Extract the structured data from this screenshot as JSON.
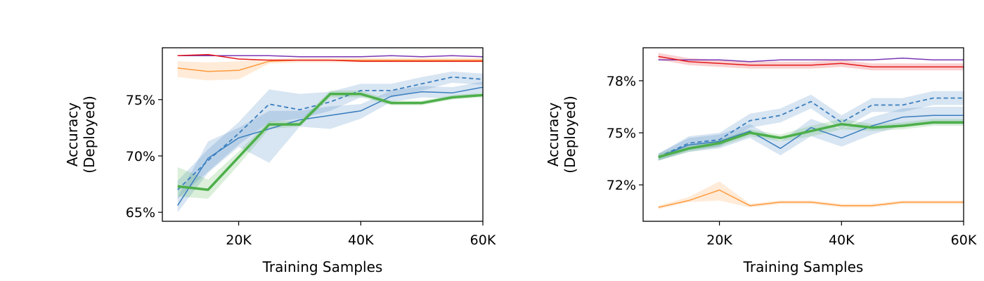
{
  "chart_data": [
    {
      "type": "line",
      "xlabel": "Training Samples",
      "ylabel_lines": [
        "Accuracy",
        "(Deployed)"
      ],
      "xlim": [
        7500,
        60000
      ],
      "ylim": [
        64.2,
        79.6
      ],
      "xticks": [
        20000,
        40000,
        60000
      ],
      "xtick_labels": [
        "20K",
        "40K",
        "60K"
      ],
      "yticks": [
        65,
        70,
        75
      ],
      "ytick_labels": [
        "65%",
        "70%",
        "75%"
      ],
      "grid": false,
      "series": [
        {
          "color": "#ff9a3d",
          "style": "solid",
          "width": 1.5,
          "x": [
            10000,
            15000,
            20000,
            25000,
            30000,
            35000,
            40000,
            45000,
            50000,
            55000,
            60000
          ],
          "y": [
            77.8,
            77.5,
            77.6,
            78.4,
            78.5,
            78.5,
            78.5,
            78.5,
            78.5,
            78.5,
            78.5
          ],
          "band_lo": [
            77.0,
            76.7,
            76.8,
            78.2,
            78.3,
            78.3,
            78.3,
            78.3,
            78.3,
            78.3,
            78.3
          ],
          "band_hi": [
            78.4,
            78.3,
            78.4,
            78.6,
            78.7,
            78.7,
            78.7,
            78.7,
            78.7,
            78.7,
            78.7
          ]
        },
        {
          "color": "#7a35b3",
          "style": "solid",
          "width": 1.5,
          "x": [
            10000,
            15000,
            20000,
            25000,
            30000,
            35000,
            40000,
            45000,
            50000,
            55000,
            60000
          ],
          "y": [
            78.9,
            78.9,
            78.9,
            78.9,
            78.8,
            78.8,
            78.8,
            78.9,
            78.8,
            78.9,
            78.8
          ]
        },
        {
          "color": "#e41a1c",
          "style": "solid",
          "width": 1.5,
          "x": [
            10000,
            15000,
            20000,
            25000,
            30000,
            35000,
            40000,
            45000,
            50000,
            55000,
            60000
          ],
          "y": [
            78.9,
            79.0,
            78.6,
            78.5,
            78.5,
            78.5,
            78.4,
            78.4,
            78.4,
            78.4,
            78.4
          ]
        },
        {
          "color": "#3a7ebf",
          "style": "solid",
          "width": 1.5,
          "x": [
            10000,
            15000,
            20000,
            25000,
            30000,
            35000,
            40000,
            45000,
            50000,
            55000,
            60000
          ],
          "y": [
            65.6,
            69.8,
            71.6,
            72.4,
            73.2,
            73.6,
            74.0,
            75.3,
            75.7,
            75.6,
            76.1
          ],
          "band_lo": [
            65.0,
            68.5,
            70.8,
            69.4,
            72.6,
            72.4,
            73.3,
            74.8,
            75.2,
            75.1,
            75.6
          ],
          "band_hi": [
            66.3,
            71.3,
            72.5,
            74.0,
            74.0,
            74.4,
            74.6,
            75.8,
            76.2,
            76.1,
            76.6
          ]
        },
        {
          "color": "#3a7ebf",
          "style": "dashed",
          "width": 1.8,
          "x": [
            10000,
            15000,
            20000,
            25000,
            30000,
            35000,
            40000,
            45000,
            50000,
            55000,
            60000
          ],
          "y": [
            67.0,
            69.6,
            72.0,
            74.6,
            74.1,
            74.8,
            75.8,
            75.8,
            76.4,
            77.0,
            76.8
          ],
          "band_lo": [
            66.2,
            68.6,
            71.0,
            73.0,
            73.3,
            74.0,
            75.2,
            75.2,
            75.8,
            76.5,
            76.3
          ],
          "band_hi": [
            67.8,
            70.6,
            73.0,
            75.9,
            75.5,
            75.7,
            76.4,
            76.4,
            77.0,
            77.5,
            77.3
          ]
        },
        {
          "color": "#4daf4a",
          "style": "solid",
          "width": 3.5,
          "x": [
            10000,
            15000,
            20000,
            25000,
            30000,
            35000,
            40000,
            45000,
            50000,
            55000,
            60000
          ],
          "y": [
            67.3,
            67.0,
            69.9,
            72.8,
            72.8,
            75.5,
            75.5,
            74.7,
            74.7,
            75.2,
            75.4
          ],
          "band_lo": [
            66.4,
            66.2,
            69.2,
            72.4,
            72.6,
            75.2,
            75.2,
            74.5,
            74.5,
            75.0,
            75.2
          ],
          "band_hi": [
            69.0,
            67.9,
            70.4,
            73.1,
            73.1,
            75.8,
            75.8,
            74.9,
            74.9,
            75.4,
            75.6
          ]
        }
      ]
    },
    {
      "type": "line",
      "xlabel": "Training Samples",
      "ylabel_lines": [
        "Accuracy",
        "(Deployed)"
      ],
      "xlim": [
        7500,
        60000
      ],
      "ylim": [
        69.9,
        79.9
      ],
      "xticks": [
        20000,
        40000,
        60000
      ],
      "xtick_labels": [
        "20K",
        "40K",
        "60K"
      ],
      "yticks": [
        72,
        75,
        78
      ],
      "ytick_labels": [
        "72%",
        "75%",
        "78%"
      ],
      "grid": false,
      "series": [
        {
          "color": "#ff9a3d",
          "style": "solid",
          "width": 1.5,
          "x": [
            10000,
            15000,
            20000,
            25000,
            30000,
            35000,
            40000,
            45000,
            50000,
            55000,
            60000
          ],
          "y": [
            70.7,
            71.1,
            71.7,
            70.8,
            71.0,
            71.0,
            70.8,
            70.8,
            71.0,
            71.0,
            71.0
          ],
          "band_lo": [
            70.6,
            71.0,
            71.1,
            70.7,
            70.9,
            70.9,
            70.7,
            70.7,
            70.9,
            70.9,
            70.9
          ],
          "band_hi": [
            70.8,
            71.3,
            72.2,
            70.9,
            71.1,
            71.1,
            70.9,
            70.9,
            71.1,
            71.1,
            71.1
          ]
        },
        {
          "color": "#7a35b3",
          "style": "solid",
          "width": 1.5,
          "x": [
            10000,
            15000,
            20000,
            25000,
            30000,
            35000,
            40000,
            45000,
            50000,
            55000,
            60000
          ],
          "y": [
            79.2,
            79.2,
            79.2,
            79.1,
            79.2,
            79.2,
            79.2,
            79.2,
            79.3,
            79.2,
            79.2
          ]
        },
        {
          "color": "#e41a1c",
          "style": "solid",
          "width": 1.5,
          "x": [
            10000,
            15000,
            20000,
            25000,
            30000,
            35000,
            40000,
            45000,
            50000,
            55000,
            60000
          ],
          "y": [
            79.4,
            79.1,
            79.0,
            78.9,
            78.9,
            78.9,
            79.0,
            78.8,
            78.8,
            78.8,
            78.8
          ],
          "band_lo": [
            79.2,
            78.9,
            78.8,
            78.7,
            78.7,
            78.7,
            78.8,
            78.6,
            78.6,
            78.6,
            78.6
          ],
          "band_hi": [
            79.6,
            79.3,
            79.2,
            79.1,
            79.1,
            79.1,
            79.2,
            79.0,
            79.0,
            79.0,
            79.0
          ]
        },
        {
          "color": "#3a7ebf",
          "style": "solid",
          "width": 1.5,
          "x": [
            10000,
            15000,
            20000,
            25000,
            30000,
            35000,
            40000,
            45000,
            50000,
            55000,
            60000
          ],
          "y": [
            73.6,
            74.3,
            74.5,
            75.1,
            74.1,
            75.3,
            74.7,
            75.4,
            75.9,
            76.0,
            76.0
          ],
          "band_lo": [
            73.4,
            73.9,
            74.1,
            74.7,
            73.7,
            74.8,
            74.2,
            74.9,
            75.4,
            75.5,
            75.5
          ],
          "band_hi": [
            73.8,
            74.7,
            74.9,
            75.5,
            74.5,
            75.8,
            75.2,
            75.9,
            76.4,
            76.5,
            76.5
          ]
        },
        {
          "color": "#3a7ebf",
          "style": "dashed",
          "width": 1.8,
          "x": [
            10000,
            15000,
            20000,
            25000,
            30000,
            35000,
            40000,
            45000,
            50000,
            55000,
            60000
          ],
          "y": [
            73.6,
            74.4,
            74.6,
            75.7,
            76.0,
            76.8,
            75.6,
            76.6,
            76.6,
            77.0,
            77.0
          ],
          "band_lo": [
            73.4,
            74.0,
            74.2,
            75.3,
            75.6,
            76.4,
            75.2,
            76.2,
            76.2,
            76.6,
            76.6
          ],
          "band_hi": [
            73.8,
            74.8,
            75.0,
            76.1,
            76.4,
            77.2,
            76.0,
            77.0,
            77.0,
            77.4,
            77.4
          ]
        },
        {
          "color": "#4daf4a",
          "style": "solid",
          "width": 3.5,
          "x": [
            10000,
            15000,
            20000,
            25000,
            30000,
            35000,
            40000,
            45000,
            50000,
            55000,
            60000
          ],
          "y": [
            73.6,
            74.1,
            74.4,
            75.0,
            74.7,
            75.1,
            75.5,
            75.3,
            75.4,
            75.6,
            75.6
          ],
          "band_lo": [
            73.4,
            73.9,
            74.2,
            74.8,
            74.5,
            74.8,
            75.2,
            75.1,
            75.2,
            75.4,
            75.4
          ],
          "band_hi": [
            73.8,
            74.3,
            74.6,
            75.2,
            74.9,
            75.4,
            75.8,
            75.5,
            75.6,
            75.8,
            75.8
          ]
        }
      ]
    }
  ]
}
